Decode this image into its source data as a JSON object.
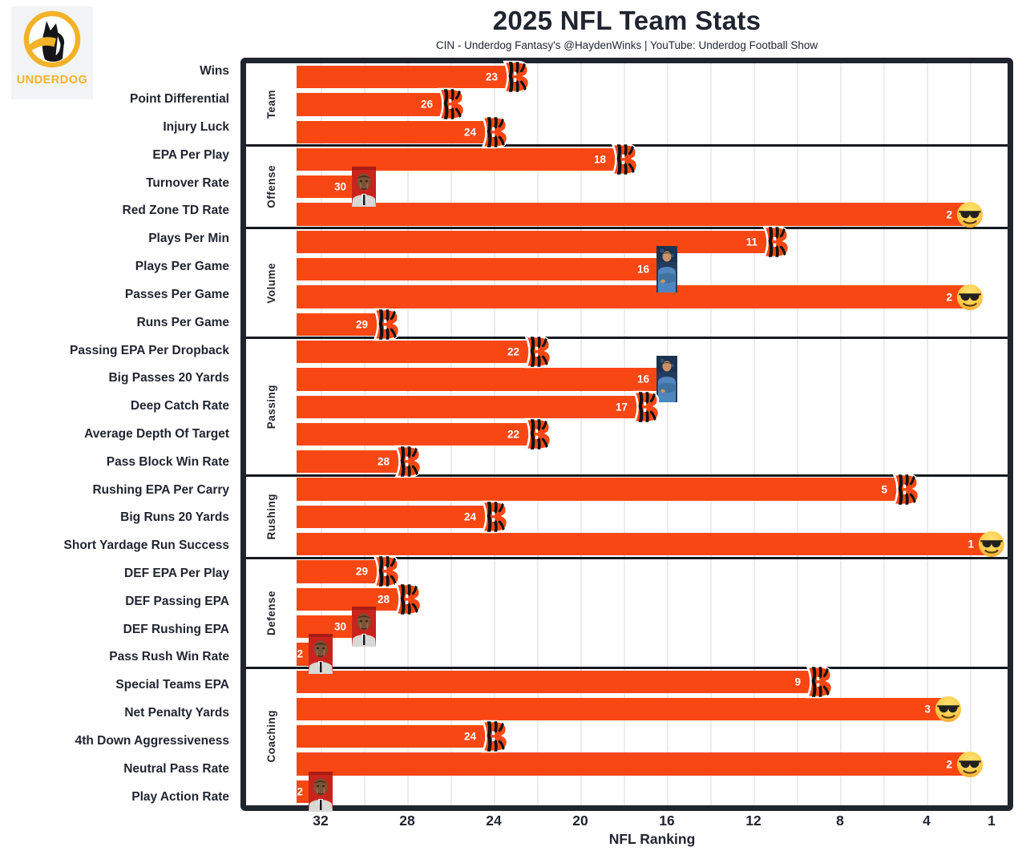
{
  "logo": {
    "brand": "UNDERDOG"
  },
  "header": {
    "title": "2025 NFL Team Stats",
    "subtitle": "CIN - Underdog Fantasy's @HaydenWinks | YouTube: Underdog Football Show"
  },
  "colors": {
    "bar": "#F94714",
    "text": "#1F2430",
    "border": "#20242E",
    "divider": "#15181F",
    "gridline": "#ECECEC",
    "brand_gold": "#F3B229",
    "value_label": "#FFFFFF"
  },
  "chart_data": {
    "type": "bar",
    "orientation": "horizontal",
    "title": "2025 NFL Team Stats",
    "team": "CIN",
    "xlabel": "NFL Ranking",
    "x_ticks": [
      32,
      28,
      24,
      20,
      16,
      12,
      8,
      4,
      1
    ],
    "x_axis_reversed": true,
    "x_range": [
      33,
      1
    ],
    "grid": "vertical gridlines every 2 ranks",
    "legend_position": "none",
    "marker_icons": [
      "bengals-logo",
      "smiling-face-with-sunglasses-emoji",
      "crying-jordan",
      "coach-arms-crossed"
    ],
    "groups": [
      {
        "label": "Team",
        "rows": [
          {
            "label": "Wins",
            "rank": 23,
            "marker": "bengals-logo"
          },
          {
            "label": "Point Differential",
            "rank": 26,
            "marker": "bengals-logo"
          },
          {
            "label": "Injury Luck",
            "rank": 24,
            "marker": "bengals-logo"
          }
        ]
      },
      {
        "label": "Offense",
        "rows": [
          {
            "label": "EPA Per Play",
            "rank": 18,
            "marker": "bengals-logo"
          },
          {
            "label": "Turnover Rate",
            "rank": 30,
            "marker": "crying-jordan"
          },
          {
            "label": "Red Zone TD Rate",
            "rank": 2,
            "marker": "smiling-face-with-sunglasses-emoji"
          }
        ]
      },
      {
        "label": "Volume",
        "rows": [
          {
            "label": "Plays Per Min",
            "rank": 11,
            "marker": "bengals-logo"
          },
          {
            "label": "Plays Per Game",
            "rank": 16,
            "marker": "coach-arms-crossed"
          },
          {
            "label": "Passes Per Game",
            "rank": 2,
            "marker": "smiling-face-with-sunglasses-emoji"
          },
          {
            "label": "Runs Per Game",
            "rank": 29,
            "marker": "bengals-logo"
          }
        ]
      },
      {
        "label": "Passing",
        "rows": [
          {
            "label": "Passing EPA Per Dropback",
            "rank": 22,
            "marker": "bengals-logo"
          },
          {
            "label": "Big Passes 20 Yards",
            "rank": 16,
            "marker": "coach-arms-crossed"
          },
          {
            "label": "Deep Catch Rate",
            "rank": 17,
            "marker": "bengals-logo"
          },
          {
            "label": "Average Depth Of Target",
            "rank": 22,
            "marker": "bengals-logo"
          },
          {
            "label": "Pass Block Win Rate",
            "rank": 28,
            "marker": "bengals-logo"
          }
        ]
      },
      {
        "label": "Rushing",
        "rows": [
          {
            "label": "Rushing EPA Per Carry",
            "rank": 5,
            "marker": "bengals-logo"
          },
          {
            "label": "Big Runs 20 Yards",
            "rank": 24,
            "marker": "bengals-logo"
          },
          {
            "label": "Short Yardage Run Success",
            "rank": 1,
            "marker": "smiling-face-with-sunglasses-emoji"
          }
        ]
      },
      {
        "label": "Defense",
        "rows": [
          {
            "label": "DEF EPA Per Play",
            "rank": 29,
            "marker": "bengals-logo"
          },
          {
            "label": "DEF Passing EPA",
            "rank": 28,
            "marker": "bengals-logo"
          },
          {
            "label": "DEF Rushing EPA",
            "rank": 30,
            "marker": "crying-jordan"
          },
          {
            "label": "Pass Rush Win Rate",
            "rank": 32,
            "marker": "crying-jordan"
          }
        ]
      },
      {
        "label": "Coaching",
        "rows": [
          {
            "label": "Special Teams EPA",
            "rank": 9,
            "marker": "bengals-logo"
          },
          {
            "label": "Net Penalty Yards",
            "rank": 3,
            "marker": "smiling-face-with-sunglasses-emoji"
          },
          {
            "label": "4th Down Aggressiveness",
            "rank": 24,
            "marker": "bengals-logo"
          },
          {
            "label": "Neutral Pass Rate",
            "rank": 2,
            "marker": "smiling-face-with-sunglasses-emoji"
          },
          {
            "label": "Play Action Rate",
            "rank": 32,
            "marker": "crying-jordan"
          }
        ]
      }
    ]
  }
}
